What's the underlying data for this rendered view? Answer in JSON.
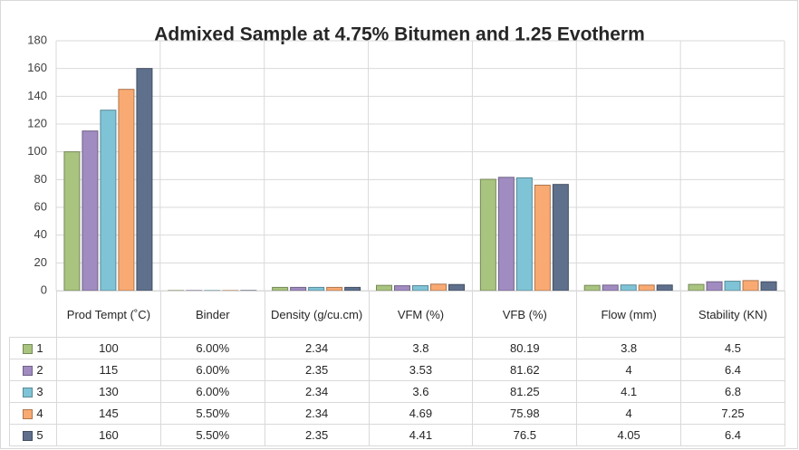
{
  "chart_data": {
    "type": "bar",
    "title": "Admixed Sample at 4.75% Bitumen and 1.25 Evotherm",
    "categories": [
      "Prod Tempt (˚C)",
      "Binder",
      "Density (g/cu.cm)",
      "VFM (%)",
      "VFB (%)",
      "Flow (mm)",
      "Stability (KN)"
    ],
    "series": [
      {
        "name": "1",
        "color": "#a9c47f",
        "values": [
          100,
          0.06,
          2.34,
          3.8,
          80.19,
          3.8,
          4.5
        ],
        "value_labels": [
          "100",
          "6.00%",
          "2.34",
          "3.8",
          "80.19",
          "3.8",
          "4.5"
        ]
      },
      {
        "name": "2",
        "color": "#a08cc0",
        "values": [
          115,
          0.06,
          2.35,
          3.53,
          81.62,
          4,
          6.4
        ],
        "value_labels": [
          "115",
          "6.00%",
          "2.35",
          "3.53",
          "81.62",
          "4",
          "6.4"
        ]
      },
      {
        "name": "3",
        "color": "#7fc4d6",
        "values": [
          130,
          0.06,
          2.34,
          3.6,
          81.25,
          4.1,
          6.8
        ],
        "value_labels": [
          "130",
          "6.00%",
          "2.34",
          "3.6",
          "81.25",
          "4.1",
          "6.8"
        ]
      },
      {
        "name": "4",
        "color": "#f9aa72",
        "values": [
          145,
          0.055,
          2.34,
          4.69,
          75.98,
          4,
          7.25
        ],
        "value_labels": [
          "145",
          "5.50%",
          "2.34",
          "4.69",
          "75.98",
          "4",
          "7.25"
        ]
      },
      {
        "name": "5",
        "color": "#5f708c",
        "values": [
          160,
          0.055,
          2.35,
          4.41,
          76.5,
          4.05,
          6.4
        ],
        "value_labels": [
          "160",
          "5.50%",
          "2.35",
          "4.41",
          "76.5",
          "4.05",
          "6.4"
        ]
      }
    ],
    "ylim": [
      0,
      180
    ],
    "yticks": [
      0,
      20,
      40,
      60,
      80,
      100,
      120,
      140,
      160,
      180
    ],
    "grid": true
  }
}
